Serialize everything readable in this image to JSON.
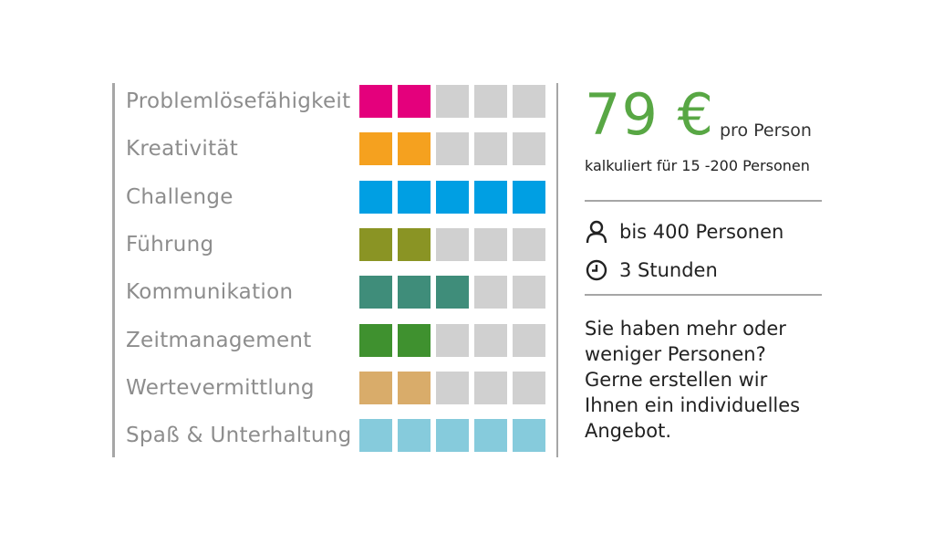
{
  "skills": [
    {
      "label": "Problemlösefähigkeit",
      "level": 2,
      "color": "#e4007c"
    },
    {
      "label": "Kreativität",
      "level": 2,
      "color": "#f5a11f"
    },
    {
      "label": "Challenge",
      "level": 5,
      "color": "#009fe3"
    },
    {
      "label": "Führung",
      "level": 2,
      "color": "#8a9424"
    },
    {
      "label": "Kommunikation",
      "level": 3,
      "color": "#3f8d7a"
    },
    {
      "label": "Zeitmanagement",
      "level": 2,
      "color": "#3f912f"
    },
    {
      "label": "Wertevermittlung",
      "level": 2,
      "color": "#d9ac6a"
    },
    {
      "label": "Spaß & Unterhaltung",
      "level": 5,
      "color": "#86cbdc"
    }
  ],
  "scale_max": 5,
  "empty_color": "#d0d0d0",
  "price": {
    "amount": "79 €",
    "per": "pro Person",
    "calc_note": "kalkuliert für 15 -200 Personen",
    "accent_color": "#58a744"
  },
  "meta": {
    "persons": "bis 400 Personen",
    "persons_icon": "person-icon",
    "duration": "3 Stunden",
    "duration_icon": "clock-icon"
  },
  "note": "Sie haben mehr oder weniger Personen? Gerne erstellen wir Ihnen ein individuelles Angebot."
}
